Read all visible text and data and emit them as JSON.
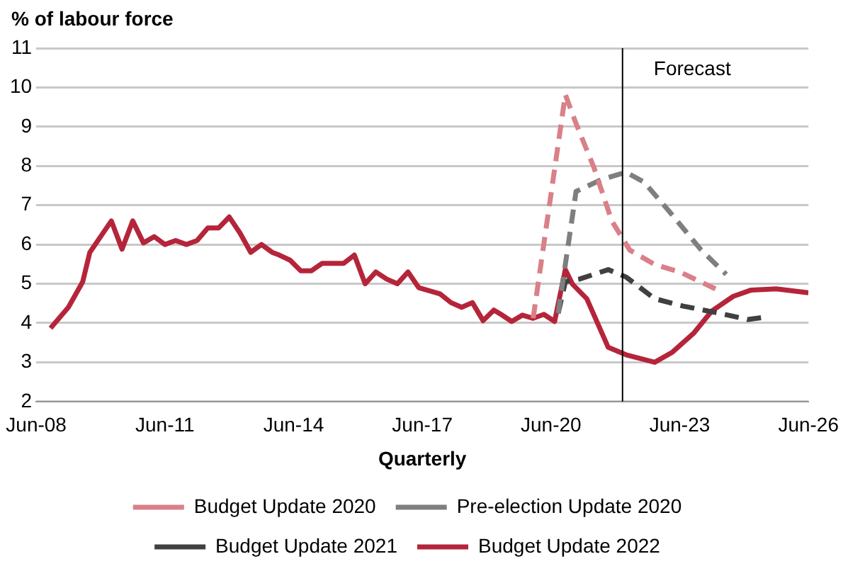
{
  "chart_data": {
    "type": "line",
    "ylabel": "% of labour force",
    "xlabel": "Quarterly",
    "xlim": [
      "2008-06",
      "2026-06"
    ],
    "xticks": [
      {
        "value": "2008-06",
        "label": "Jun-08"
      },
      {
        "value": "2011-06",
        "label": "Jun-11"
      },
      {
        "value": "2014-06",
        "label": "Jun-14"
      },
      {
        "value": "2017-06",
        "label": "Jun-17"
      },
      {
        "value": "2020-06",
        "label": "Jun-20"
      },
      {
        "value": "2023-06",
        "label": "Jun-23"
      },
      {
        "value": "2026-06",
        "label": "Jun-26"
      }
    ],
    "ylim": [
      2,
      11
    ],
    "yticks": [
      2,
      3,
      4,
      5,
      6,
      7,
      8,
      9,
      10,
      11
    ],
    "grid": "y",
    "legend": "bottom",
    "marker": "none",
    "ref_lines": [
      {
        "axis": "x",
        "value": "2022-02",
        "label": "Forecast",
        "color": "#000000"
      }
    ],
    "series": [
      {
        "name": "Budget Update 2020",
        "color": "#d98088",
        "line_style": "dashed",
        "x": [
          "2020-01",
          "2020-10",
          "2021-01",
          "2021-06",
          "2021-11",
          "2022-04",
          "2022-11",
          "2023-06",
          "2024-04"
        ],
        "values": [
          4.12,
          9.82,
          9.08,
          7.96,
          6.6,
          5.86,
          5.49,
          5.3,
          4.87
        ]
      },
      {
        "name": "Pre-election Update 2020",
        "color": "#7f7f7f",
        "line_style": "dashed",
        "x": [
          "2020-08",
          "2020-10",
          "2021-01",
          "2021-08",
          "2022-03",
          "2022-08",
          "2023-03",
          "2023-12",
          "2024-07"
        ],
        "values": [
          4.25,
          5.49,
          7.35,
          7.65,
          7.84,
          7.59,
          6.85,
          5.86,
          5.24
        ]
      },
      {
        "name": "Budget Update 2021",
        "color": "#404040",
        "line_style": "dashed",
        "x": [
          "2020-08",
          "2020-10",
          "2021-02",
          "2021-10",
          "2022-03",
          "2022-11",
          "2023-07",
          "2024-05",
          "2025-01",
          "2025-06"
        ],
        "values": [
          4.25,
          5.05,
          5.12,
          5.36,
          5.17,
          4.62,
          4.43,
          4.25,
          4.09,
          4.15
        ]
      },
      {
        "name": "Budget Update 2022",
        "color": "#b5253a",
        "line_style": "solid",
        "x": [
          "2008-10",
          "2009-03",
          "2009-07",
          "2009-09",
          "2010-03",
          "2010-06",
          "2010-09",
          "2010-12",
          "2011-03",
          "2011-06",
          "2011-09",
          "2011-12",
          "2012-03",
          "2012-06",
          "2012-09",
          "2012-12",
          "2013-03",
          "2013-06",
          "2013-09",
          "2013-12",
          "2014-02",
          "2014-05",
          "2014-08",
          "2014-11",
          "2015-02",
          "2015-05",
          "2015-08",
          "2015-11",
          "2016-02",
          "2016-05",
          "2016-08",
          "2016-11",
          "2017-02",
          "2017-05",
          "2017-11",
          "2018-02",
          "2018-05",
          "2018-08",
          "2018-11",
          "2019-02",
          "2019-04",
          "2019-07",
          "2019-10",
          "2020-01",
          "2020-04",
          "2020-07",
          "2020-10",
          "2020-12",
          "2021-04",
          "2021-10",
          "2022-03",
          "2022-11",
          "2023-04",
          "2023-10",
          "2024-03",
          "2024-09",
          "2025-02",
          "2025-09",
          "2026-06"
        ],
        "values": [
          3.87,
          4.4,
          5.05,
          5.8,
          6.6,
          5.88,
          6.6,
          6.04,
          6.2,
          6.0,
          6.1,
          6.0,
          6.1,
          6.42,
          6.42,
          6.7,
          6.29,
          5.8,
          6.0,
          5.8,
          5.73,
          5.6,
          5.33,
          5.33,
          5.52,
          5.52,
          5.52,
          5.73,
          5.0,
          5.3,
          5.12,
          5.0,
          5.3,
          4.9,
          4.74,
          4.52,
          4.4,
          4.52,
          4.06,
          4.33,
          4.22,
          4.04,
          4.2,
          4.12,
          4.22,
          4.04,
          5.36,
          4.99,
          4.62,
          3.38,
          3.19,
          3.0,
          3.26,
          3.75,
          4.31,
          4.68,
          4.84,
          4.87,
          4.77
        ]
      }
    ]
  }
}
